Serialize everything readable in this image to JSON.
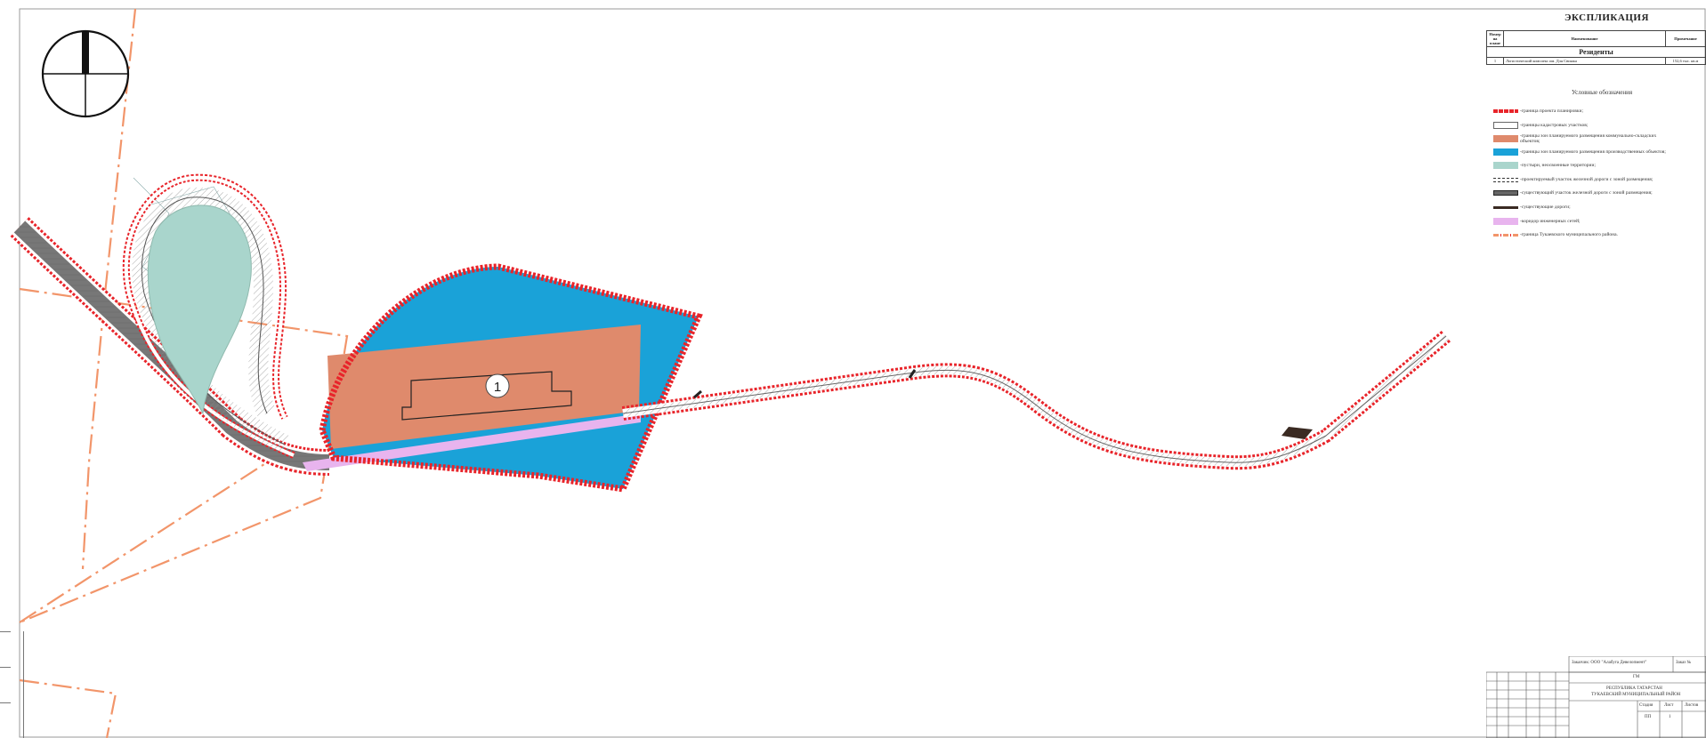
{
  "explication": {
    "title": "ЭКСПЛИКАЦИЯ",
    "headers": {
      "num": "Номер на плане",
      "name": "Наименование",
      "note": "Примечание"
    },
    "group": "Резиденты",
    "rows": [
      {
        "num": "1",
        "name": "Логистический комплекс им. Для Свияжа",
        "note": "152,6 тыс. кв.м"
      }
    ]
  },
  "legend": {
    "title": "Условные обозначения",
    "items": [
      {
        "label": "-граница проекта планировки;",
        "style": "red-dashed"
      },
      {
        "label": "-границы кадастровых участков;",
        "style": "outline"
      },
      {
        "label": "-границы зон планируемого размещения коммунально-складских объектов;",
        "style": "orange-fill"
      },
      {
        "label": "-границы зон планируемого размещения производственных объектов;",
        "style": "blue-fill"
      },
      {
        "label": "-пустыри, неосвоенные территории;",
        "style": "teal-fill"
      },
      {
        "label": "-проектируемый участок железной дороги с зоной размещения;",
        "style": "rail-proj"
      },
      {
        "label": "-существующий участок железной дороги с зоной размещения;",
        "style": "rail-exist"
      },
      {
        "label": "-существующие дороги;",
        "style": "road"
      },
      {
        "label": "-коридор инженерных сетей;",
        "style": "pink-fill"
      },
      {
        "label": "-граница Тукаевского муниципального района.",
        "style": "border-dash"
      }
    ]
  },
  "map": {
    "plot_label": "1",
    "colors": {
      "boundary": "#e8242a",
      "communal": "#df8a6c",
      "industrial": "#1aa2d8",
      "wasteland": "#a9d5cc",
      "corridor": "#e8b4ee",
      "district_border": "#f2956a",
      "road": "#3a2a22"
    },
    "north_arrow_icon": "north-arrow-icon"
  },
  "stamp": {
    "customer": "Заказчик: ООО \"Алабуга Девелопмент\"",
    "order": "Заказ №",
    "code": "ГМ",
    "region": "РЕСПУБЛИКА ТАТАРСТАН",
    "district": "ТУКАЕВСКИЙ МУНИЦИПАЛЬНЫЙ РАЙОН",
    "stage_label": "Стадия",
    "sheet_label": "Лист",
    "sheets_label": "Листов",
    "stage": "ПП",
    "sheet": "1"
  }
}
